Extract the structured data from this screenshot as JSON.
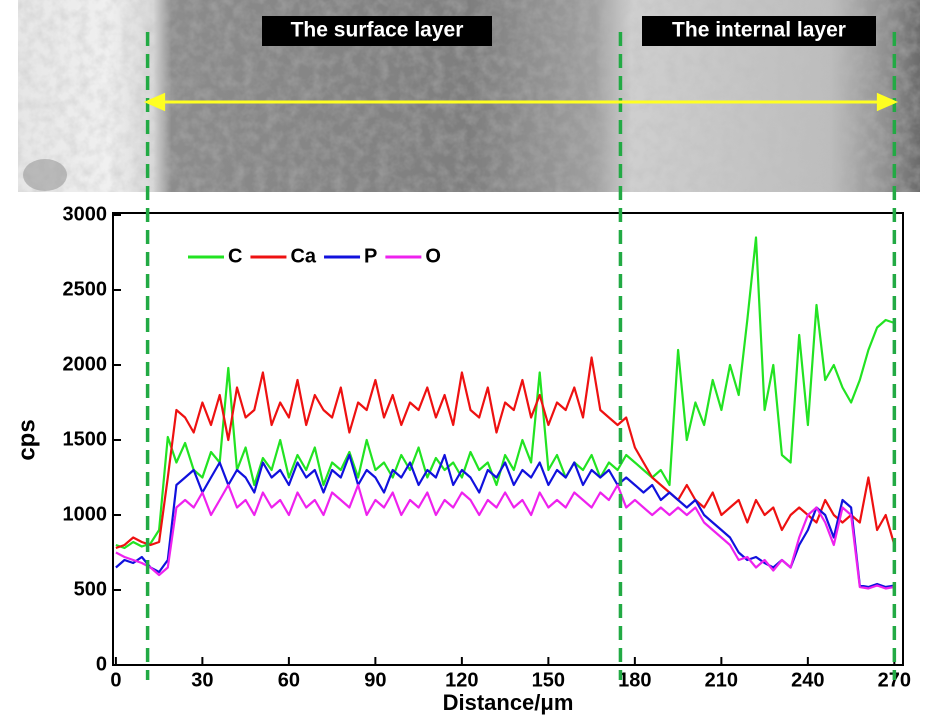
{
  "chart_data": {
    "type": "line",
    "xlabel": "Distance/μm",
    "ylabel": "cps",
    "annotations": [
      "The surface layer",
      "The internal layer"
    ],
    "dividers": [
      11,
      175,
      270
    ],
    "x": [
      0,
      3,
      6,
      9,
      12,
      15,
      18,
      21,
      24,
      27,
      30,
      33,
      36,
      39,
      42,
      45,
      48,
      51,
      54,
      57,
      60,
      63,
      66,
      69,
      72,
      75,
      78,
      81,
      84,
      87,
      90,
      93,
      96,
      99,
      102,
      105,
      108,
      111,
      114,
      117,
      120,
      123,
      126,
      129,
      132,
      135,
      138,
      141,
      144,
      147,
      150,
      153,
      156,
      159,
      162,
      165,
      168,
      171,
      174,
      177,
      180,
      183,
      186,
      189,
      192,
      195,
      198,
      201,
      204,
      207,
      210,
      213,
      216,
      219,
      222,
      225,
      228,
      231,
      234,
      237,
      240,
      243,
      246,
      249,
      252,
      255,
      258,
      261,
      264,
      267,
      270
    ],
    "series": [
      {
        "name": "C",
        "color": "#22e322",
        "values": [
          800,
          780,
          820,
          790,
          810,
          900,
          1520,
          1350,
          1480,
          1300,
          1250,
          1420,
          1350,
          1980,
          1300,
          1450,
          1200,
          1380,
          1300,
          1500,
          1250,
          1400,
          1300,
          1450,
          1200,
          1350,
          1300,
          1420,
          1250,
          1500,
          1300,
          1350,
          1250,
          1400,
          1300,
          1450,
          1250,
          1380,
          1300,
          1350,
          1250,
          1420,
          1300,
          1350,
          1200,
          1400,
          1300,
          1500,
          1350,
          1950,
          1300,
          1400,
          1250,
          1350,
          1300,
          1400,
          1250,
          1350,
          1300,
          1400,
          1350,
          1300,
          1250,
          1300,
          1200,
          2100,
          1500,
          1750,
          1600,
          1900,
          1700,
          2000,
          1800,
          2300,
          2850,
          1700,
          2000,
          1400,
          1350,
          2200,
          1600,
          2400,
          1900,
          2000,
          1850,
          1750,
          1900,
          2100,
          2250,
          2300,
          2280
        ]
      },
      {
        "name": "Ca",
        "color": "#ee1111",
        "values": [
          780,
          800,
          850,
          820,
          800,
          820,
          1250,
          1700,
          1650,
          1550,
          1750,
          1600,
          1800,
          1500,
          1850,
          1650,
          1700,
          1950,
          1600,
          1750,
          1650,
          1900,
          1600,
          1800,
          1700,
          1650,
          1850,
          1550,
          1750,
          1700,
          1900,
          1650,
          1800,
          1600,
          1750,
          1700,
          1850,
          1650,
          1800,
          1600,
          1950,
          1700,
          1650,
          1850,
          1550,
          1750,
          1700,
          1900,
          1650,
          1800,
          1600,
          1750,
          1700,
          1850,
          1650,
          2050,
          1700,
          1650,
          1600,
          1650,
          1450,
          1350,
          1250,
          1200,
          1150,
          1100,
          1200,
          1100,
          1050,
          1150,
          1000,
          1050,
          1100,
          950,
          1100,
          1000,
          1050,
          900,
          1000,
          1050,
          1000,
          950,
          1100,
          1000,
          950,
          1000,
          950,
          1250,
          900,
          1000,
          800
        ]
      },
      {
        "name": "P",
        "color": "#1111dd",
        "values": [
          650,
          700,
          680,
          720,
          650,
          620,
          700,
          1200,
          1250,
          1300,
          1150,
          1250,
          1350,
          1200,
          1300,
          1250,
          1150,
          1350,
          1250,
          1300,
          1200,
          1350,
          1250,
          1300,
          1150,
          1300,
          1250,
          1400,
          1200,
          1300,
          1250,
          1150,
          1300,
          1250,
          1350,
          1200,
          1300,
          1250,
          1400,
          1200,
          1300,
          1250,
          1150,
          1300,
          1250,
          1350,
          1200,
          1300,
          1250,
          1350,
          1200,
          1300,
          1250,
          1350,
          1200,
          1300,
          1250,
          1300,
          1200,
          1250,
          1200,
          1150,
          1200,
          1100,
          1150,
          1100,
          1050,
          1100,
          1000,
          950,
          900,
          850,
          750,
          700,
          720,
          680,
          650,
          700,
          650,
          800,
          900,
          1050,
          1000,
          850,
          1100,
          1050,
          530,
          520,
          540,
          520,
          530
        ]
      },
      {
        "name": "O",
        "color": "#ee22ee",
        "values": [
          750,
          720,
          700,
          680,
          650,
          600,
          650,
          1050,
          1100,
          1050,
          1150,
          1000,
          1100,
          1200,
          1050,
          1100,
          1000,
          1150,
          1050,
          1100,
          1000,
          1150,
          1050,
          1100,
          1000,
          1150,
          1100,
          1050,
          1200,
          1000,
          1100,
          1050,
          1150,
          1000,
          1100,
          1050,
          1150,
          1000,
          1100,
          1050,
          1150,
          1100,
          1000,
          1100,
          1050,
          1150,
          1050,
          1100,
          1000,
          1150,
          1050,
          1100,
          1050,
          1150,
          1100,
          1050,
          1150,
          1100,
          1200,
          1050,
          1100,
          1050,
          1000,
          1050,
          1000,
          1050,
          1000,
          1050,
          950,
          900,
          850,
          800,
          700,
          720,
          650,
          700,
          630,
          700,
          650,
          850,
          1000,
          1050,
          950,
          800,
          1050,
          1000,
          520,
          510,
          530,
          510,
          520
        ]
      }
    ],
    "xlim": [
      -1,
      273
    ],
    "ylim": [
      0,
      3000
    ],
    "xticks": [
      0,
      30,
      60,
      90,
      120,
      150,
      180,
      210,
      240,
      270
    ],
    "yticks": [
      0,
      500,
      1000,
      1500,
      2000,
      2500,
      3000
    ],
    "legend": "upper left",
    "divider_color": "#22aa44",
    "arrow_color": "#ffff22"
  }
}
